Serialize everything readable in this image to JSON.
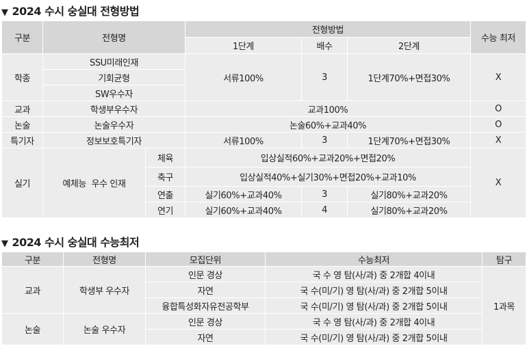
{
  "section1": {
    "title": "2024 수시 숭실대 전형방법",
    "header": {
      "category": "구분",
      "track": "전형명",
      "method": "전형방법",
      "stage1": "1단계",
      "multiplier": "배수",
      "stage2": "2단계",
      "csat_min": "수능 최저"
    },
    "rows": {
      "hakjong": {
        "category": "학종",
        "tracks": [
          "SSU미래인재",
          "기회균형",
          "SW우수자"
        ],
        "stage1": "서류100%",
        "multiplier": "3",
        "stage2": "1단계70%+면접30%",
        "csat": "X"
      },
      "gyogwa": {
        "category": "교과",
        "track": "학생부우수자",
        "method": "교과100%",
        "csat": "O"
      },
      "nonsul": {
        "category": "논술",
        "track": "논술우수자",
        "method": "논술60%+교과40%",
        "csat": "O"
      },
      "teukgi": {
        "category": "특기자",
        "track": "정보보호특기자",
        "stage1": "서류100%",
        "multiplier": "3",
        "stage2": "1단계70%+면접30%",
        "csat": "X"
      },
      "silgi": {
        "category": "실기",
        "track": "예체능  우수 인재",
        "csat": "X",
        "subs": [
          {
            "name": "체육",
            "method": "입상실적60%+교과20%+면접20%"
          },
          {
            "name": "축구",
            "method": "입상실적40%+실기30%+면접20%+교과10%"
          },
          {
            "name": "연출",
            "stage1": "실기60%+교과40%",
            "multiplier": "3",
            "stage2": "실기80%+교과20%"
          },
          {
            "name": "연기",
            "stage1": "실기60%+교과40%",
            "multiplier": "4",
            "stage2": "실기80%+교과20%"
          }
        ]
      }
    }
  },
  "section2": {
    "title": "2024 수시 숭실대 수능최저",
    "header": {
      "category": "구분",
      "track": "전형명",
      "unit": "모집단위",
      "csat_min": "수능최저",
      "inquiry": "탐구"
    },
    "gyogwa": {
      "category": "교과",
      "track": "학생부 우수자",
      "rows": [
        {
          "unit": "인문 경상",
          "req": "국 수 영 탐(사/과) 중 2개합 4이내"
        },
        {
          "unit": "자연",
          "req": "국 수(미/기) 영 탐(사/과) 중 2개합 5이내"
        },
        {
          "unit": "융합특성화자유전공학부",
          "req": "국 수(미/기) 영 탐(사/과) 중 2개합 5이내"
        }
      ]
    },
    "nonsul": {
      "category": "논술",
      "track": "논술 우수자",
      "rows": [
        {
          "unit": "인문 경상",
          "req": "국 수 영 탐(사/과) 중 2개합 4이내"
        },
        {
          "unit": "자연",
          "req": "국 수(미/기) 영 탐(사/과) 중 2개합 5이내"
        }
      ]
    },
    "inquiry_value": "1과목"
  }
}
